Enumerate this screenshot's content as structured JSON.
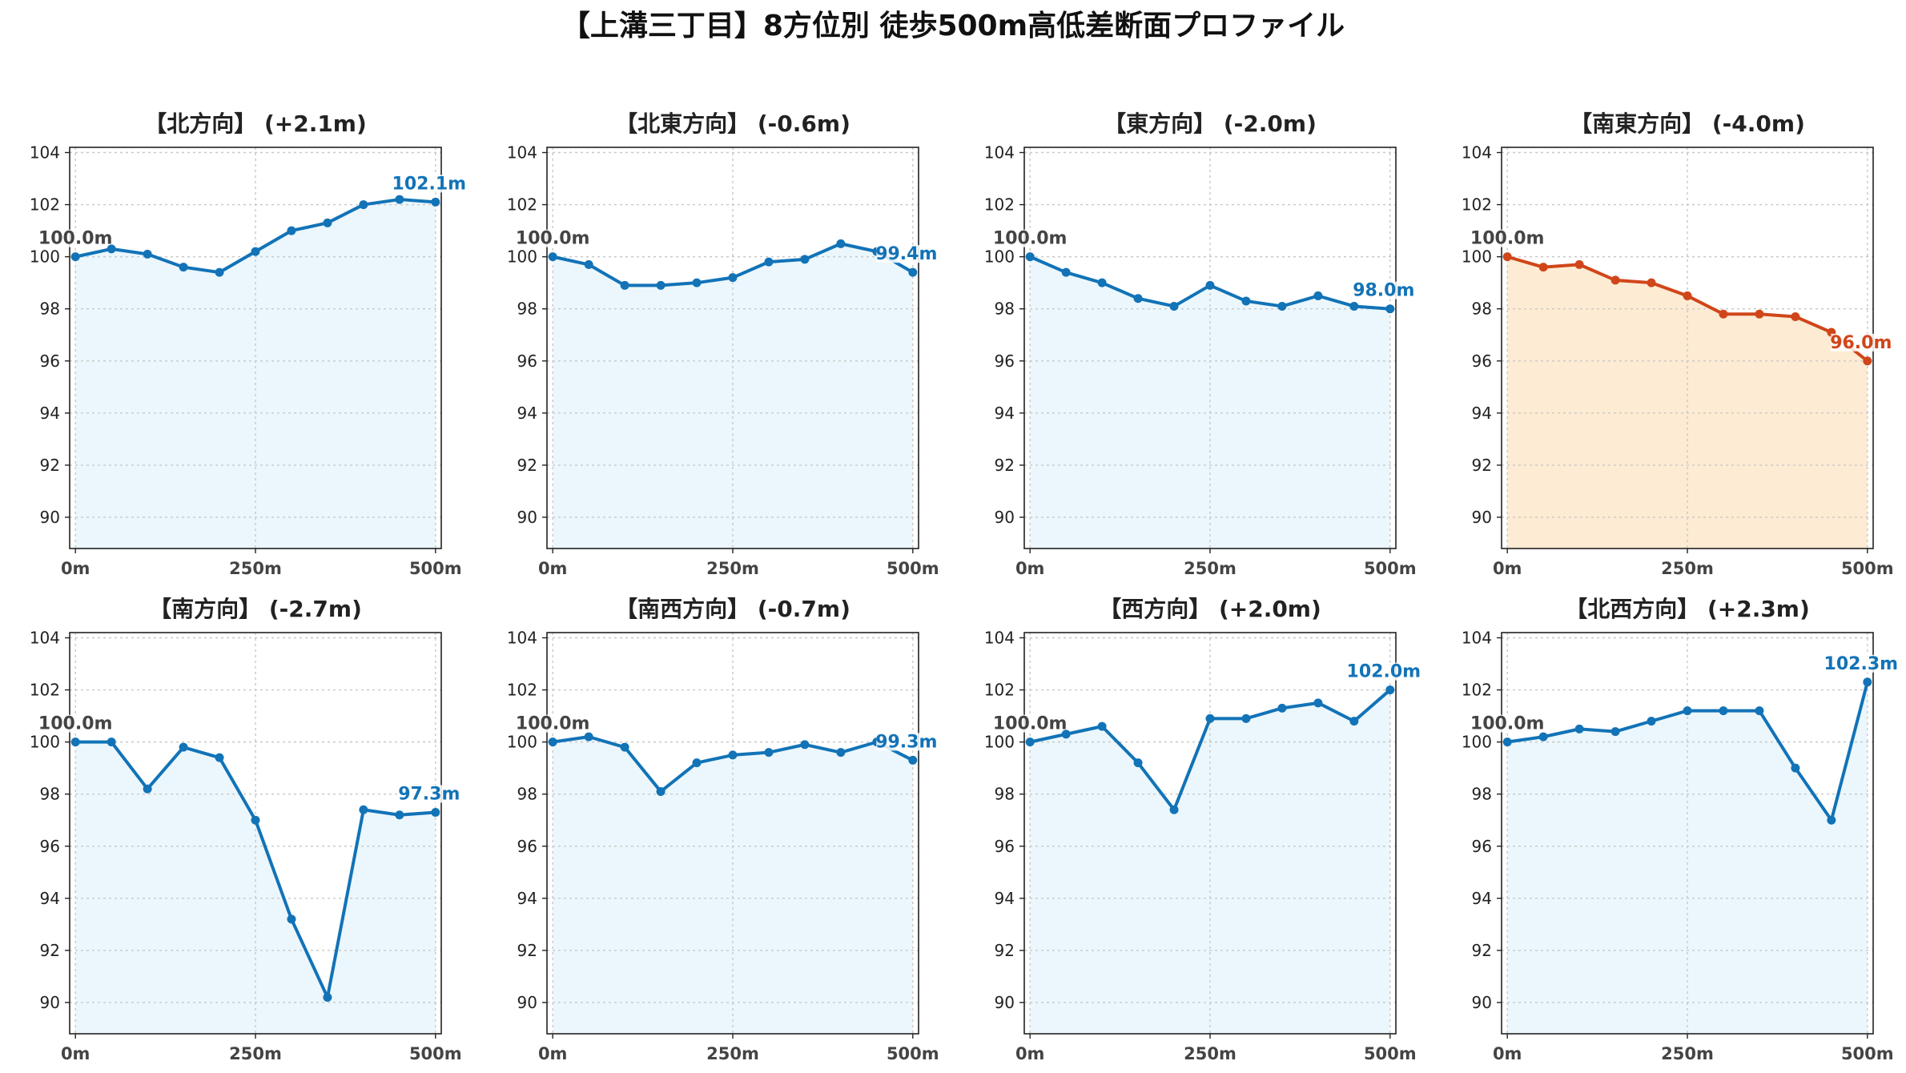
{
  "title": "【上溝三丁目】8方位別 徒歩500m高低差断面プロファイル",
  "colors": {
    "normal_line": "#1273b7",
    "normal_fill": "#ebf7fc",
    "highlight_line": "#d0461a",
    "highlight_fill": "#fdebd3",
    "start_label": "#444444"
  },
  "chart_data": [
    {
      "type": "area",
      "title": "【北方向】 (+2.1m)",
      "x": [
        0,
        50,
        100,
        150,
        200,
        250,
        300,
        350,
        400,
        450,
        500
      ],
      "values": [
        100.0,
        100.3,
        100.1,
        99.6,
        99.4,
        100.2,
        101.0,
        101.3,
        102.0,
        102.2,
        102.1
      ],
      "start_label": "100.0m",
      "end_label": "102.1m",
      "highlight": false,
      "xticks": [
        "0m",
        "250m",
        "500m"
      ],
      "yticks": [
        90,
        92,
        94,
        96,
        98,
        100,
        102,
        104
      ],
      "ylim": [
        88.8,
        104.2
      ],
      "xlim": [
        -8,
        508
      ],
      "grid": true
    },
    {
      "type": "area",
      "title": "【北東方向】 (-0.6m)",
      "x": [
        0,
        50,
        100,
        150,
        200,
        250,
        300,
        350,
        400,
        450,
        500
      ],
      "values": [
        100.0,
        99.7,
        98.9,
        98.9,
        99.0,
        99.2,
        99.8,
        99.9,
        100.5,
        100.2,
        99.4
      ],
      "start_label": "100.0m",
      "end_label": "99.4m",
      "highlight": false,
      "xticks": [
        "0m",
        "250m",
        "500m"
      ],
      "yticks": [
        90,
        92,
        94,
        96,
        98,
        100,
        102,
        104
      ],
      "ylim": [
        88.8,
        104.2
      ],
      "xlim": [
        -8,
        508
      ],
      "grid": true
    },
    {
      "type": "area",
      "title": "【東方向】 (-2.0m)",
      "x": [
        0,
        50,
        100,
        150,
        200,
        250,
        300,
        350,
        400,
        450,
        500
      ],
      "values": [
        100.0,
        99.4,
        99.0,
        98.4,
        98.1,
        98.9,
        98.3,
        98.1,
        98.5,
        98.1,
        98.0
      ],
      "start_label": "100.0m",
      "end_label": "98.0m",
      "highlight": false,
      "xticks": [
        "0m",
        "250m",
        "500m"
      ],
      "yticks": [
        90,
        92,
        94,
        96,
        98,
        100,
        102,
        104
      ],
      "ylim": [
        88.8,
        104.2
      ],
      "xlim": [
        -8,
        508
      ],
      "grid": true
    },
    {
      "type": "area",
      "title": "【南東方向】 (-4.0m)",
      "x": [
        0,
        50,
        100,
        150,
        200,
        250,
        300,
        350,
        400,
        450,
        500
      ],
      "values": [
        100.0,
        99.6,
        99.7,
        99.1,
        99.0,
        98.5,
        97.8,
        97.8,
        97.7,
        97.1,
        96.0
      ],
      "start_label": "100.0m",
      "end_label": "96.0m",
      "highlight": true,
      "xticks": [
        "0m",
        "250m",
        "500m"
      ],
      "yticks": [
        90,
        92,
        94,
        96,
        98,
        100,
        102,
        104
      ],
      "ylim": [
        88.8,
        104.2
      ],
      "xlim": [
        -8,
        508
      ],
      "grid": true
    },
    {
      "type": "area",
      "title": "【南方向】 (-2.7m)",
      "x": [
        0,
        50,
        100,
        150,
        200,
        250,
        300,
        350,
        400,
        450,
        500
      ],
      "values": [
        100.0,
        100.0,
        98.2,
        99.8,
        99.4,
        97.0,
        93.2,
        90.2,
        97.4,
        97.2,
        97.3
      ],
      "start_label": "100.0m",
      "end_label": "97.3m",
      "highlight": false,
      "xticks": [
        "0m",
        "250m",
        "500m"
      ],
      "yticks": [
        90,
        92,
        94,
        96,
        98,
        100,
        102,
        104
      ],
      "ylim": [
        88.8,
        104.2
      ],
      "xlim": [
        -8,
        508
      ],
      "grid": true
    },
    {
      "type": "area",
      "title": "【南西方向】 (-0.7m)",
      "x": [
        0,
        50,
        100,
        150,
        200,
        250,
        300,
        350,
        400,
        450,
        500
      ],
      "values": [
        100.0,
        100.2,
        99.8,
        98.1,
        99.2,
        99.5,
        99.6,
        99.9,
        99.6,
        100.0,
        99.3
      ],
      "start_label": "100.0m",
      "end_label": "99.3m",
      "highlight": false,
      "xticks": [
        "0m",
        "250m",
        "500m"
      ],
      "yticks": [
        90,
        92,
        94,
        96,
        98,
        100,
        102,
        104
      ],
      "ylim": [
        88.8,
        104.2
      ],
      "xlim": [
        -8,
        508
      ],
      "grid": true
    },
    {
      "type": "area",
      "title": "【西方向】 (+2.0m)",
      "x": [
        0,
        50,
        100,
        150,
        200,
        250,
        300,
        350,
        400,
        450,
        500
      ],
      "values": [
        100.0,
        100.3,
        100.6,
        99.2,
        97.4,
        100.9,
        100.9,
        101.3,
        101.5,
        100.8,
        102.0
      ],
      "start_label": "100.0m",
      "end_label": "102.0m",
      "highlight": false,
      "xticks": [
        "0m",
        "250m",
        "500m"
      ],
      "yticks": [
        90,
        92,
        94,
        96,
        98,
        100,
        102,
        104
      ],
      "ylim": [
        88.8,
        104.2
      ],
      "xlim": [
        -8,
        508
      ],
      "grid": true
    },
    {
      "type": "area",
      "title": "【北西方向】 (+2.3m)",
      "x": [
        0,
        50,
        100,
        150,
        200,
        250,
        300,
        350,
        400,
        450,
        500
      ],
      "values": [
        100.0,
        100.2,
        100.5,
        100.4,
        100.8,
        101.2,
        101.2,
        101.2,
        99.0,
        97.0,
        102.3
      ],
      "start_label": "100.0m",
      "end_label": "102.3m",
      "highlight": false,
      "xticks": [
        "0m",
        "250m",
        "500m"
      ],
      "yticks": [
        90,
        92,
        94,
        96,
        98,
        100,
        102,
        104
      ],
      "ylim": [
        88.8,
        104.2
      ],
      "xlim": [
        -8,
        508
      ],
      "grid": true
    }
  ]
}
